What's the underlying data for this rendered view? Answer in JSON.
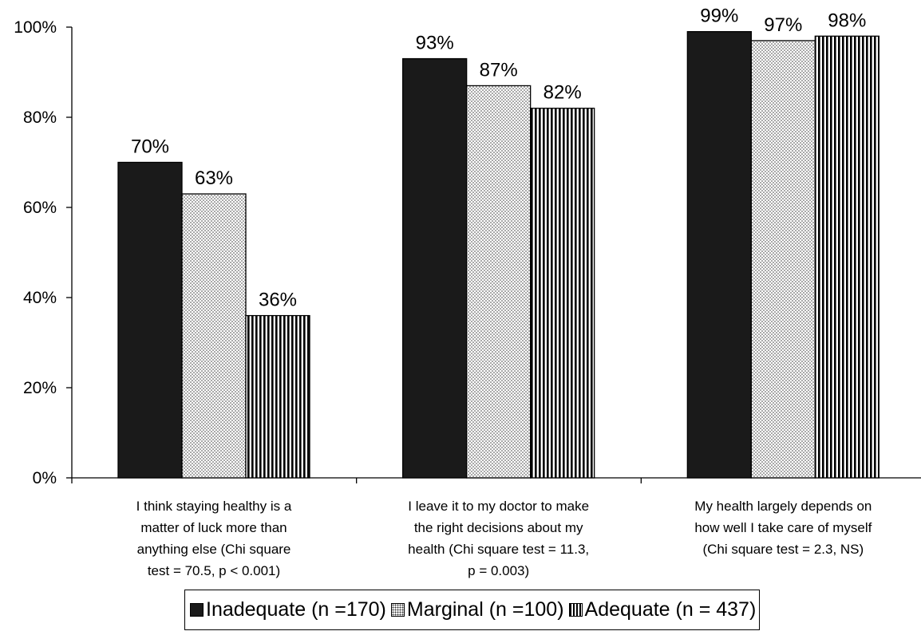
{
  "chart_data": {
    "type": "bar",
    "categories": [
      [
        "I think staying healthy is a",
        "matter of luck more than",
        "anything else (Chi square",
        "test = 70.5, p < 0.001)"
      ],
      [
        "I leave it to my doctor to make",
        "the right decisions about my",
        "health (Chi square test = 11.3,",
        "p = 0.003)"
      ],
      [
        "My health largely depends on",
        "how well I take care of myself",
        "(Chi square test = 2.3, NS)"
      ]
    ],
    "series": [
      {
        "name": "Inadequate (n =170)",
        "values": [
          70,
          93,
          99
        ],
        "labels": [
          "70%",
          "93%",
          "99%"
        ],
        "color": "#1a1a1a"
      },
      {
        "name": "Marginal (n =100)",
        "values": [
          63,
          87,
          97
        ],
        "labels": [
          "63%",
          "87%",
          "97%"
        ],
        "color": "#ffffff"
      },
      {
        "name": "Adequate (n = 437)",
        "values": [
          36,
          82,
          98
        ],
        "labels": [
          "36%",
          "82%",
          "98%"
        ],
        "color": "#ffffff"
      }
    ],
    "y_ticks": [
      {
        "value": 0,
        "label": "0%"
      },
      {
        "value": 20,
        "label": "20%"
      },
      {
        "value": 40,
        "label": "40%"
      },
      {
        "value": 60,
        "label": "60%"
      },
      {
        "value": 80,
        "label": "80%"
      },
      {
        "value": 100,
        "label": "100%"
      }
    ],
    "ylim": [
      0,
      100
    ],
    "grid": false,
    "legend_position": "bottom"
  }
}
